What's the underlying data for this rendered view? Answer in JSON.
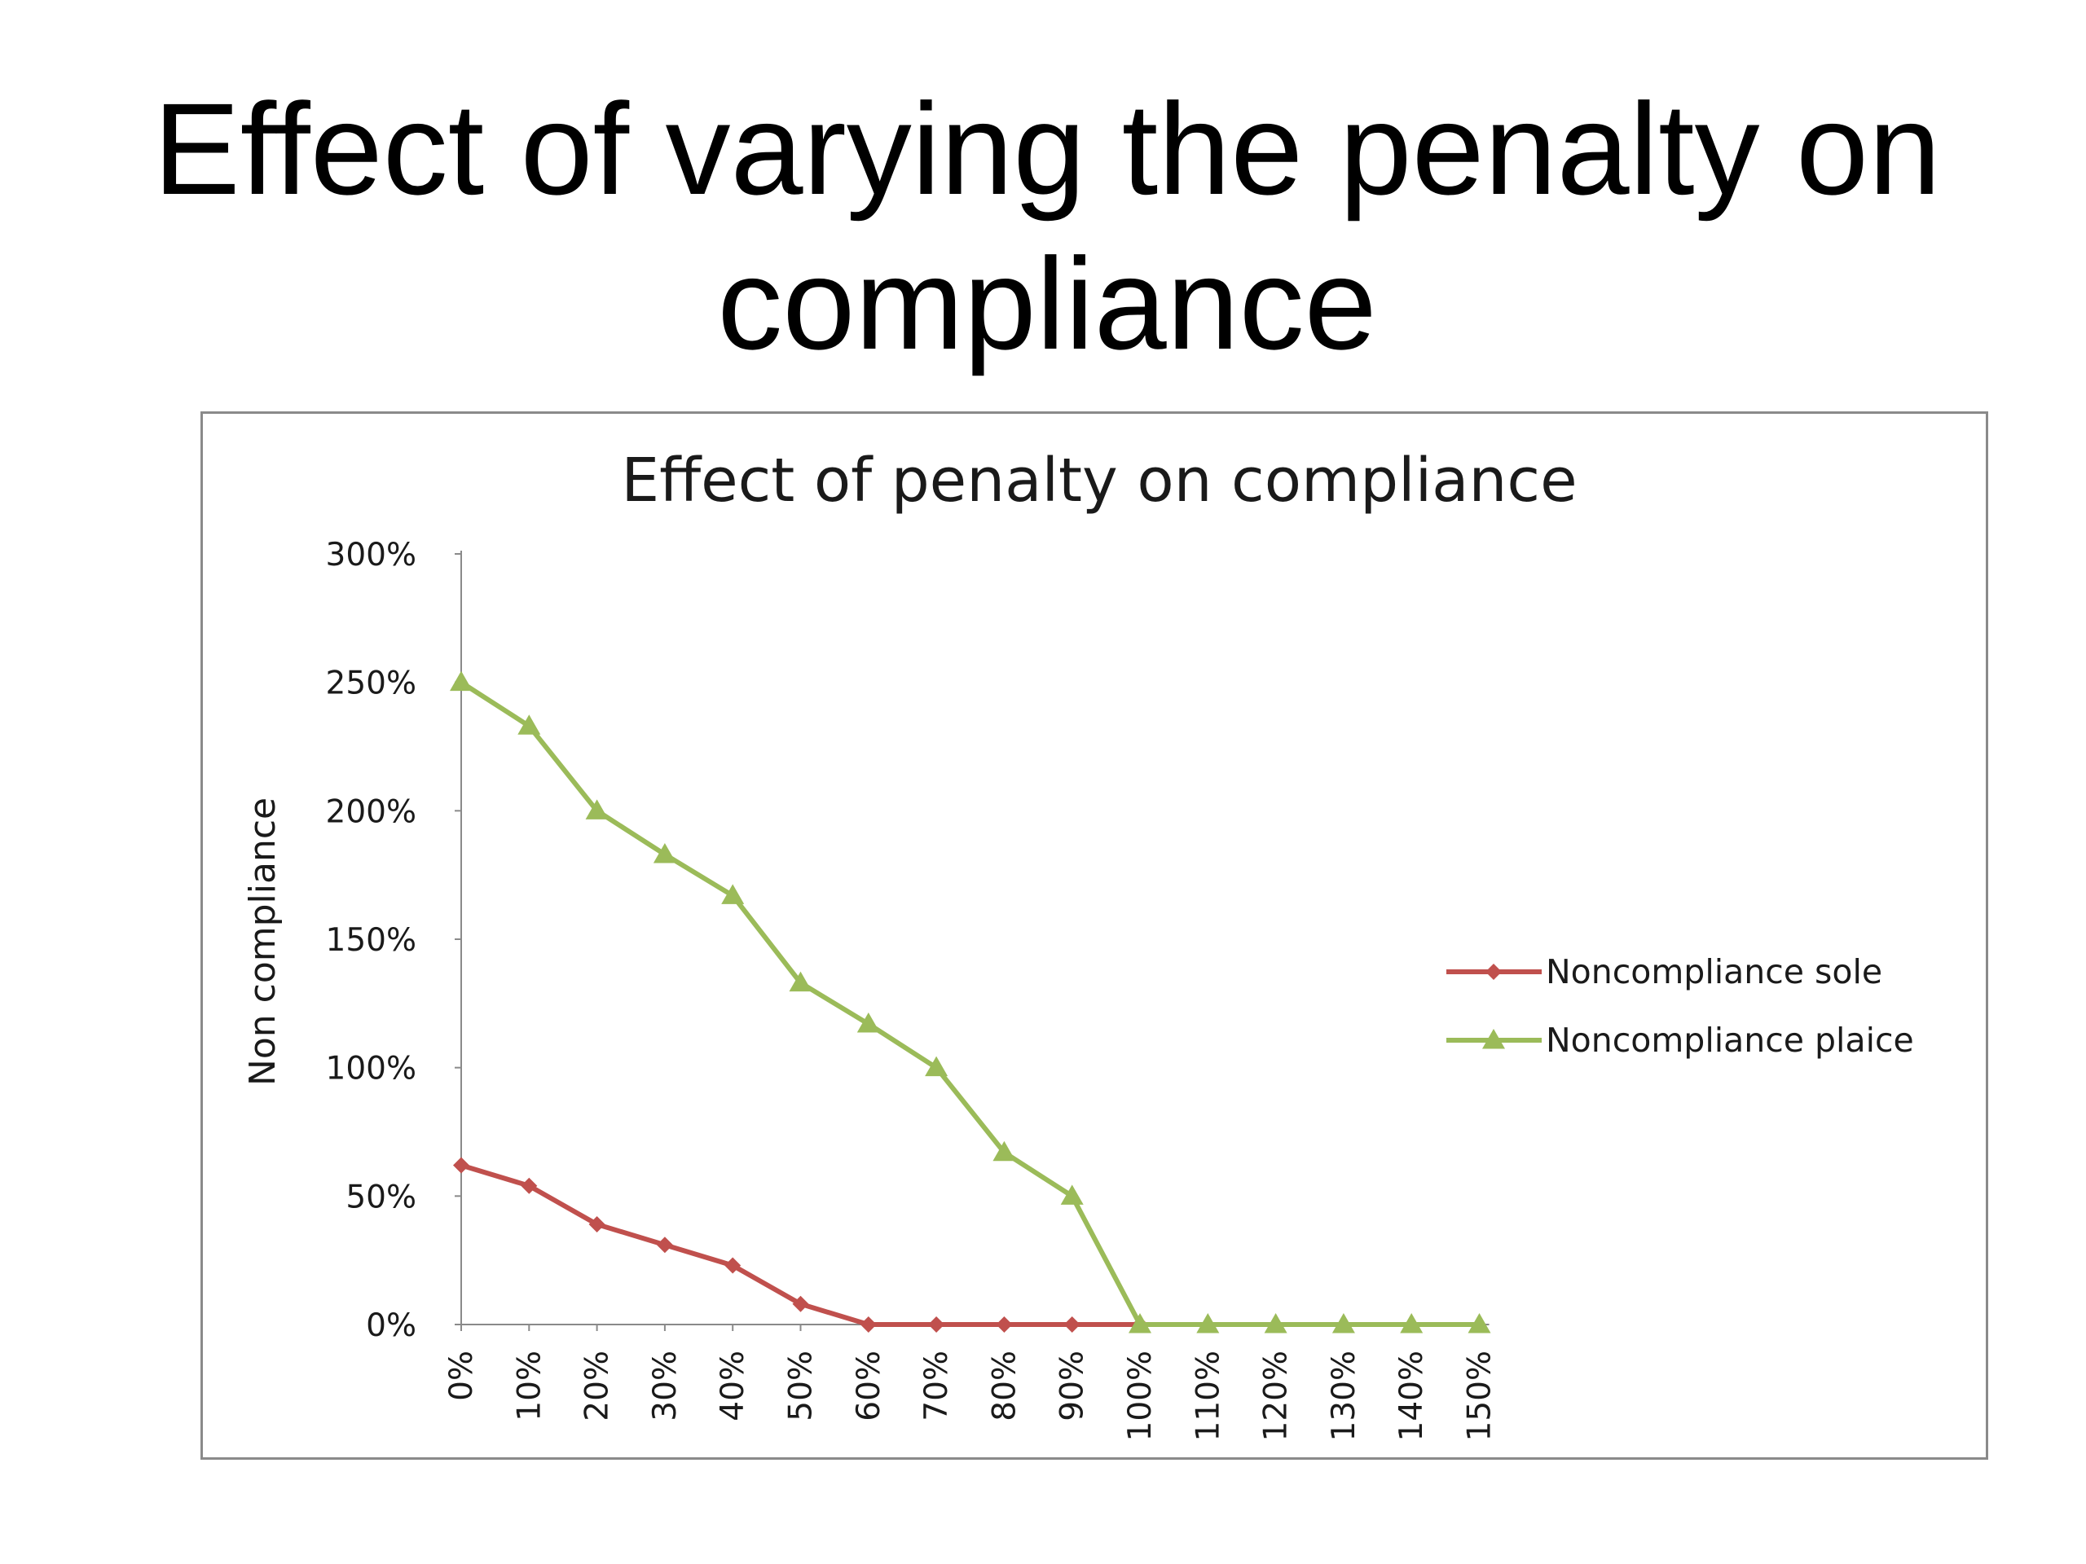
{
  "slide": {
    "title_line1": "Effect of varying the penalty on",
    "title_line2": "compliance"
  },
  "colors": {
    "sole": "#c0504d",
    "plaice": "#9bbb59",
    "axis": "#8a8a8a",
    "frame": "#8a8a8a"
  },
  "chart_data": {
    "type": "line",
    "title": "Effect of penalty on compliance",
    "xlabel": "",
    "ylabel": "Non compliance",
    "categories": [
      "0%",
      "10%",
      "20%",
      "30%",
      "40%",
      "50%",
      "60%",
      "70%",
      "80%",
      "90%",
      "100%",
      "110%",
      "120%",
      "130%",
      "140%",
      "150%"
    ],
    "y_ticks": [
      "0%",
      "50%",
      "100%",
      "150%",
      "200%",
      "250%",
      "300%"
    ],
    "ylim": [
      0,
      3
    ],
    "grid": false,
    "legend_position": "right",
    "series": [
      {
        "name": "Noncompliance sole",
        "marker": "diamond",
        "color": "#c0504d",
        "values": [
          0.62,
          0.54,
          0.39,
          0.31,
          0.23,
          0.08,
          0.0,
          0.0,
          0.0,
          0.0,
          0.0,
          null,
          null,
          null,
          null,
          null
        ]
      },
      {
        "name": "Noncompliance plaice",
        "marker": "triangle",
        "color": "#9bbb59",
        "values": [
          2.5,
          2.33,
          2.0,
          1.83,
          1.67,
          1.33,
          1.17,
          1.0,
          0.67,
          0.5,
          0.0,
          0.0,
          0.0,
          0.0,
          0.0,
          0.0
        ]
      }
    ]
  }
}
